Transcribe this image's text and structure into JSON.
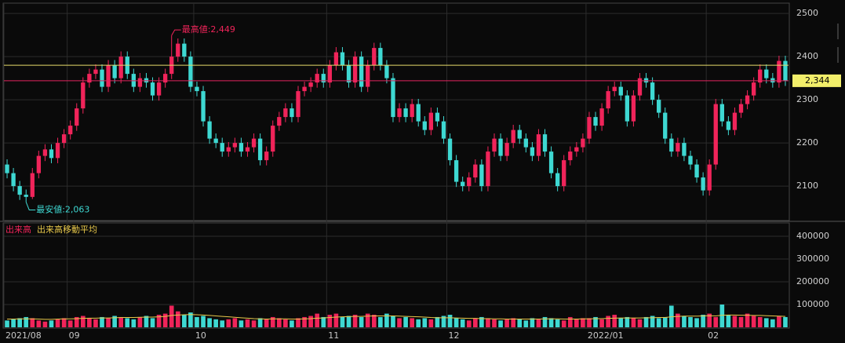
{
  "chart_data": [
    {
      "type": "candlestick",
      "categories": [
        "2021/08",
        null,
        null,
        null,
        null,
        null,
        null,
        null,
        null,
        null,
        "09",
        null,
        null,
        null,
        null,
        null,
        null,
        null,
        null,
        null,
        null,
        null,
        null,
        null,
        null,
        null,
        null,
        null,
        null,
        null,
        "10",
        null,
        null,
        null,
        null,
        null,
        null,
        null,
        null,
        null,
        null,
        null,
        null,
        null,
        null,
        null,
        null,
        null,
        null,
        null,
        null,
        "11",
        null,
        null,
        null,
        null,
        null,
        null,
        null,
        null,
        null,
        null,
        null,
        null,
        null,
        null,
        null,
        null,
        null,
        null,
        "12",
        null,
        null,
        null,
        null,
        null,
        null,
        null,
        null,
        null,
        null,
        null,
        null,
        null,
        null,
        null,
        null,
        null,
        null,
        null,
        null,
        null,
        "2022/01",
        null,
        null,
        null,
        null,
        null,
        null,
        null,
        null,
        null,
        null,
        null,
        null,
        null,
        null,
        null,
        null,
        null,
        null,
        "02",
        null,
        null,
        null,
        null,
        null,
        null,
        null,
        null,
        null,
        null,
        null,
        null
      ],
      "open": [
        2150,
        2130,
        2100,
        2080,
        2075,
        2130,
        2170,
        2185,
        2165,
        2200,
        2220,
        2240,
        2280,
        2340,
        2360,
        2370,
        2330,
        2380,
        2350,
        2400,
        2360,
        2330,
        2350,
        2340,
        2310,
        2340,
        2360,
        2400,
        2430,
        2400,
        2330,
        2320,
        2250,
        2210,
        2200,
        2180,
        2190,
        2200,
        2180,
        2190,
        2210,
        2160,
        2180,
        2240,
        2260,
        2280,
        2260,
        2320,
        2330,
        2340,
        2360,
        2340,
        2380,
        2410,
        2380,
        2340,
        2400,
        2330,
        2380,
        2420,
        2380,
        2350,
        2260,
        2280,
        2260,
        2290,
        2250,
        2230,
        2270,
        2250,
        2210,
        2160,
        2110,
        2100,
        2120,
        2150,
        2100,
        2180,
        2210,
        2170,
        2200,
        2230,
        2210,
        2190,
        2170,
        2220,
        2180,
        2130,
        2100,
        2160,
        2180,
        2190,
        2210,
        2260,
        2240,
        2280,
        2320,
        2330,
        2310,
        2250,
        2310,
        2350,
        2340,
        2300,
        2270,
        2210,
        2180,
        2200,
        2170,
        2150,
        2120,
        2090,
        2150,
        2290,
        2250,
        2230,
        2270,
        2290,
        2310,
        2340,
        2370,
        2350,
        2340,
        2390
      ],
      "high": [
        2162,
        2142,
        2112,
        2092,
        2142,
        2182,
        2197,
        2197,
        2212,
        2232,
        2252,
        2292,
        2352,
        2372,
        2382,
        2382,
        2392,
        2392,
        2412,
        2412,
        2372,
        2362,
        2362,
        2352,
        2352,
        2372,
        2449,
        2442,
        2442,
        2412,
        2342,
        2332,
        2262,
        2222,
        2212,
        2202,
        2212,
        2212,
        2202,
        2222,
        2222,
        2192,
        2252,
        2272,
        2292,
        2292,
        2332,
        2342,
        2352,
        2372,
        2372,
        2392,
        2422,
        2422,
        2392,
        2412,
        2412,
        2392,
        2432,
        2432,
        2392,
        2362,
        2292,
        2292,
        2302,
        2302,
        2262,
        2282,
        2282,
        2262,
        2222,
        2172,
        2122,
        2132,
        2162,
        2162,
        2192,
        2222,
        2222,
        2212,
        2242,
        2242,
        2222,
        2202,
        2232,
        2232,
        2192,
        2142,
        2172,
        2192,
        2202,
        2222,
        2272,
        2272,
        2292,
        2332,
        2342,
        2342,
        2322,
        2322,
        2362,
        2362,
        2352,
        2312,
        2282,
        2222,
        2212,
        2212,
        2182,
        2162,
        2132,
        2162,
        2302,
        2302,
        2262,
        2282,
        2302,
        2322,
        2352,
        2382,
        2382,
        2362,
        2402,
        2402
      ],
      "low": [
        2118,
        2088,
        2068,
        2063,
        2070,
        2118,
        2158,
        2153,
        2153,
        2188,
        2208,
        2228,
        2268,
        2328,
        2348,
        2318,
        2318,
        2338,
        2338,
        2348,
        2318,
        2318,
        2328,
        2298,
        2298,
        2328,
        2348,
        2388,
        2388,
        2318,
        2308,
        2238,
        2198,
        2188,
        2168,
        2168,
        2178,
        2168,
        2168,
        2178,
        2148,
        2148,
        2168,
        2228,
        2248,
        2248,
        2248,
        2308,
        2318,
        2328,
        2328,
        2328,
        2368,
        2368,
        2328,
        2328,
        2318,
        2318,
        2368,
        2368,
        2338,
        2248,
        2248,
        2248,
        2248,
        2238,
        2218,
        2218,
        2238,
        2198,
        2148,
        2098,
        2088,
        2088,
        2108,
        2088,
        2088,
        2168,
        2158,
        2158,
        2188,
        2198,
        2178,
        2158,
        2158,
        2168,
        2118,
        2088,
        2088,
        2148,
        2168,
        2178,
        2198,
        2228,
        2228,
        2268,
        2308,
        2298,
        2238,
        2238,
        2298,
        2328,
        2288,
        2258,
        2198,
        2168,
        2168,
        2158,
        2138,
        2108,
        2078,
        2078,
        2138,
        2238,
        2218,
        2218,
        2258,
        2278,
        2298,
        2328,
        2338,
        2328,
        2328,
        2332
      ],
      "close": [
        2130,
        2100,
        2080,
        2075,
        2130,
        2170,
        2185,
        2165,
        2200,
        2220,
        2240,
        2280,
        2340,
        2360,
        2370,
        2330,
        2380,
        2350,
        2400,
        2360,
        2330,
        2350,
        2340,
        2310,
        2340,
        2360,
        2400,
        2430,
        2400,
        2330,
        2320,
        2250,
        2210,
        2200,
        2180,
        2190,
        2200,
        2180,
        2190,
        2210,
        2160,
        2180,
        2240,
        2260,
        2280,
        2260,
        2320,
        2330,
        2340,
        2360,
        2340,
        2380,
        2410,
        2380,
        2340,
        2400,
        2330,
        2380,
        2420,
        2380,
        2350,
        2260,
        2280,
        2260,
        2290,
        2250,
        2230,
        2270,
        2250,
        2210,
        2160,
        2110,
        2100,
        2120,
        2150,
        2100,
        2180,
        2210,
        2170,
        2200,
        2230,
        2210,
        2190,
        2170,
        2220,
        2180,
        2130,
        2100,
        2160,
        2180,
        2190,
        2210,
        2260,
        2240,
        2280,
        2320,
        2330,
        2310,
        2250,
        2310,
        2350,
        2340,
        2300,
        2270,
        2210,
        2180,
        2200,
        2170,
        2150,
        2120,
        2090,
        2150,
        2290,
        2250,
        2230,
        2270,
        2290,
        2310,
        2340,
        2370,
        2350,
        2340,
        2390,
        2344
      ],
      "up_color": "#f0245a",
      "down_color": "#3ed8d2",
      "ylim": [
        2022,
        2522
      ],
      "yticks": [
        2100,
        2200,
        2300,
        2400,
        2500
      ],
      "grid": true,
      "lines": [
        {
          "value": 2380,
          "color": "#e6dc6a"
        },
        {
          "value": 2344,
          "label": "2,344",
          "color": "#e0245e"
        }
      ],
      "annotations": [
        {
          "text": "最高値:2,449",
          "index": 26,
          "value": 2449,
          "color": "#f0245a"
        },
        {
          "text": "最安値:2,063",
          "index": 3,
          "value": 2063,
          "color": "#3ed8d2"
        }
      ]
    },
    {
      "type": "volume",
      "series": [
        {
          "name": "出来高",
          "color": "#f0245a",
          "values": [
            30000,
            35000,
            40000,
            45000,
            40000,
            30000,
            25000,
            30000,
            35000,
            40000,
            30000,
            45000,
            50000,
            40000,
            35000,
            45000,
            40000,
            50000,
            45000,
            40000,
            35000,
            45000,
            50000,
            40000,
            55000,
            60000,
            95000,
            70000,
            55000,
            65000,
            45000,
            50000,
            40000,
            35000,
            30000,
            35000,
            40000,
            30000,
            35000,
            30000,
            40000,
            35000,
            45000,
            40000,
            35000,
            30000,
            40000,
            45000,
            50000,
            60000,
            45000,
            55000,
            60000,
            45000,
            50000,
            55000,
            45000,
            60000,
            55000,
            45000,
            60000,
            50000,
            40000,
            45000,
            40000,
            35000,
            40000,
            35000,
            45000,
            50000,
            55000,
            40000,
            35000,
            30000,
            40000,
            45000,
            40000,
            35000,
            30000,
            35000,
            40000,
            35000,
            30000,
            40000,
            35000,
            45000,
            40000,
            35000,
            30000,
            45000,
            35000,
            40000,
            40000,
            45000,
            35000,
            50000,
            55000,
            40000,
            45000,
            40000,
            35000,
            45000,
            50000,
            40000,
            45000,
            95000,
            60000,
            50000,
            45000,
            40000,
            55000,
            60000,
            45000,
            100000,
            55000,
            50000,
            45000,
            60000,
            50000,
            45000,
            40000,
            35000,
            50000,
            45000
          ]
        },
        {
          "name": "出来高移動平均",
          "color": "#e8c84a",
          "values": [
            36000,
            36000,
            37000,
            37000,
            37000,
            36000,
            35000,
            35000,
            36000,
            37000,
            37000,
            38000,
            39000,
            40000,
            40000,
            41000,
            41000,
            42000,
            43000,
            43000,
            43000,
            44000,
            45000,
            45000,
            46000,
            48000,
            52000,
            54000,
            55000,
            56000,
            55000,
            54000,
            52000,
            50000,
            48000,
            46000,
            44000,
            42000,
            40000,
            38000,
            37000,
            36000,
            37000,
            37000,
            37000,
            36000,
            36000,
            37000,
            38000,
            40000,
            41000,
            43000,
            45000,
            46000,
            47000,
            48000,
            48000,
            49000,
            50000,
            50000,
            50000,
            50000,
            49000,
            48000,
            47000,
            46000,
            45000,
            43000,
            42000,
            42000,
            42000,
            41000,
            40000,
            39000,
            39000,
            38000,
            38000,
            37000,
            37000,
            36000,
            36000,
            36000,
            36000,
            36000,
            36000,
            37000,
            37000,
            37000,
            36000,
            36000,
            36000,
            37000,
            37000,
            38000,
            38000,
            39000,
            40000,
            41000,
            41000,
            41000,
            41000,
            42000,
            42000,
            43000,
            43000,
            46000,
            48000,
            49000,
            49000,
            49000,
            50000,
            51000,
            50000,
            53000,
            54000,
            54000,
            53000,
            53000,
            52000,
            52000,
            51000,
            50000,
            49000,
            48000
          ]
        }
      ],
      "ylim": [
        0,
        455000
      ],
      "yticks": [
        100000,
        200000,
        300000,
        400000
      ],
      "grid": true
    }
  ]
}
